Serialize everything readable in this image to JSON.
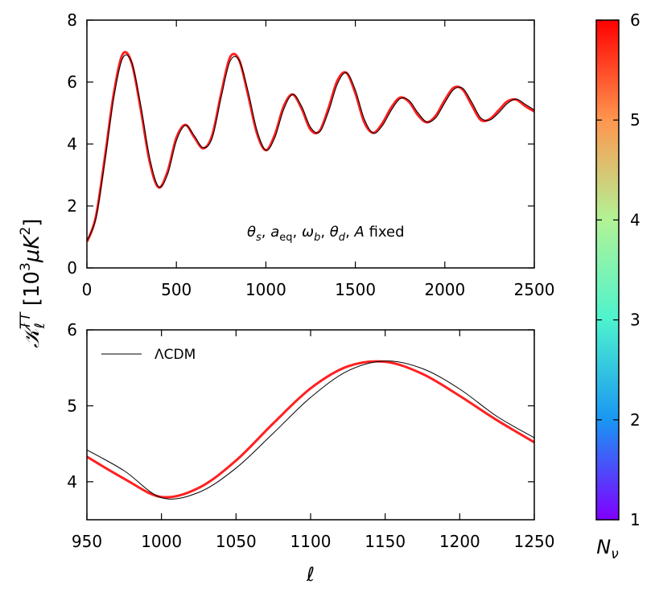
{
  "y_label": [
    "𝒦",
    "ℓ",
    "TT",
    " [10",
    "3",
    "μK",
    "2",
    "]"
  ],
  "annotation": [
    "θ",
    "s",
    ",  ",
    "a",
    "eq",
    ",  ",
    "ω",
    "b",
    ",  ",
    "θ",
    "d",
    ",  ",
    "A",
    " fixed"
  ],
  "colorbar": {
    "label": [
      "N",
      "ν"
    ],
    "lim": [
      1,
      6
    ],
    "ticks": [
      1,
      2,
      3,
      4,
      5,
      6
    ],
    "colors": [
      "#8000ff",
      "#1996f3",
      "#4df3ce",
      "#b2f396",
      "#ff964f",
      "#ff0000"
    ]
  },
  "chart_data": [
    {
      "type": "line",
      "x": [
        2,
        50,
        100,
        150,
        200,
        250,
        300,
        350,
        400,
        450,
        500,
        550,
        600,
        650,
        700,
        750,
        800,
        850,
        900,
        950,
        1000,
        1050,
        1100,
        1150,
        1200,
        1250,
        1300,
        1350,
        1400,
        1450,
        1500,
        1550,
        1600,
        1650,
        1700,
        1750,
        1800,
        1850,
        1900,
        1950,
        2000,
        2050,
        2100,
        2150,
        2200,
        2250,
        2300,
        2350,
        2400,
        2450,
        2500
      ],
      "series": [
        {
          "color": "#ff2020",
          "linewidth": 3,
          "values": [
            0.85,
            1.65,
            3.55,
            5.62,
            6.9,
            6.62,
            5.15,
            3.45,
            2.6,
            3.1,
            4.2,
            4.62,
            4.22,
            3.86,
            4.28,
            5.62,
            6.8,
            6.72,
            5.6,
            4.35,
            3.8,
            4.3,
            5.22,
            5.6,
            5.14,
            4.46,
            4.42,
            5.16,
            6.05,
            6.3,
            5.64,
            4.7,
            4.36,
            4.66,
            5.17,
            5.5,
            5.36,
            4.93,
            4.7,
            4.92,
            5.42,
            5.82,
            5.76,
            5.26,
            4.78,
            4.8,
            5.08,
            5.38,
            5.43,
            5.22,
            5.05
          ]
        },
        {
          "name": "ΛCDM",
          "color": "#000000",
          "linewidth": 1,
          "values": [
            0.9,
            1.59,
            3.42,
            5.49,
            6.77,
            6.64,
            5.28,
            3.58,
            2.63,
            3.0,
            4.1,
            4.6,
            4.27,
            3.88,
            4.19,
            5.5,
            6.67,
            6.71,
            5.72,
            4.45,
            3.8,
            4.2,
            5.12,
            5.6,
            5.22,
            4.54,
            4.39,
            5.04,
            5.94,
            6.3,
            5.75,
            4.81,
            4.35,
            4.58,
            5.08,
            5.46,
            5.41,
            5.01,
            4.71,
            4.85,
            5.33,
            5.76,
            5.8,
            5.36,
            4.85,
            4.77,
            5.0,
            5.31,
            5.45,
            5.28,
            5.1
          ]
        }
      ],
      "xlim": [
        0,
        2500
      ],
      "ylim": [
        0,
        8
      ],
      "xticks": [
        0,
        500,
        1000,
        1500,
        2000,
        2500
      ],
      "yticks": [
        0,
        2,
        4,
        6,
        8
      ]
    },
    {
      "type": "line",
      "x_label": "ℓ",
      "x": [
        950,
        975,
        1000,
        1025,
        1050,
        1075,
        1100,
        1125,
        1150,
        1175,
        1200,
        1225,
        1250
      ],
      "series": [
        {
          "color": "#ff2020",
          "linewidth": 3,
          "values": [
            4.33,
            4.04,
            3.8,
            3.92,
            4.28,
            4.77,
            5.23,
            5.52,
            5.58,
            5.42,
            5.13,
            4.81,
            4.52
          ]
        },
        {
          "name": "ΛCDM",
          "color": "#000000",
          "linewidth": 1,
          "values": [
            4.42,
            4.145,
            3.79,
            3.86,
            4.18,
            4.64,
            5.11,
            5.46,
            5.59,
            5.49,
            5.22,
            4.86,
            4.58
          ]
        }
      ],
      "xlim": [
        950,
        1250
      ],
      "ylim": [
        3.5,
        6
      ],
      "xticks": [
        950,
        1000,
        1050,
        1100,
        1150,
        1200,
        1250
      ],
      "yticks": [
        4,
        5,
        6
      ],
      "legend": "upper left"
    }
  ]
}
